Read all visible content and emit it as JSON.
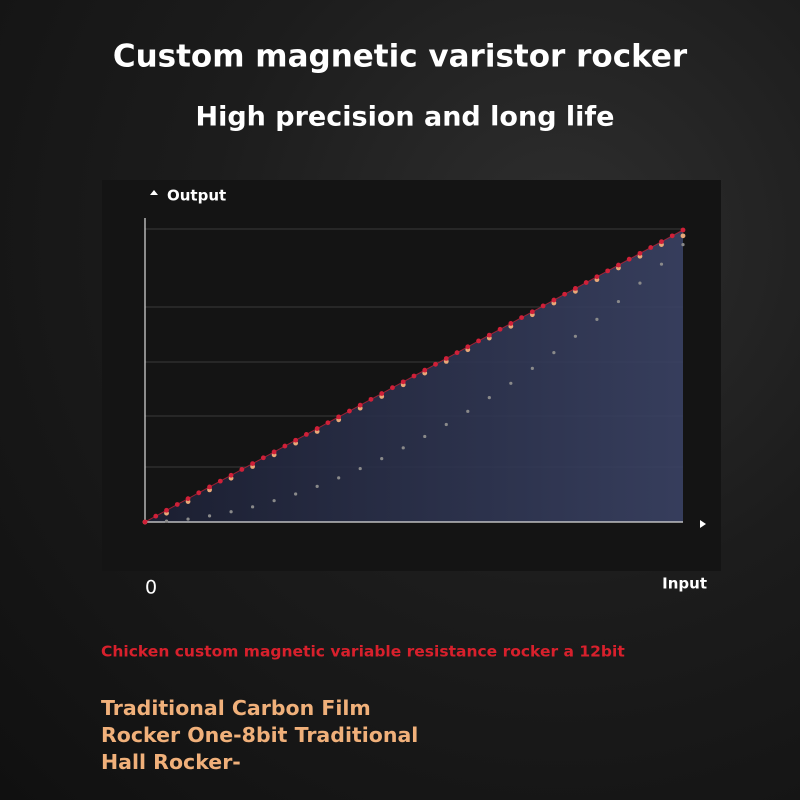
{
  "chart_data": {
    "type": "scatter",
    "title": "Custom magnetic varistor rocker",
    "subtitle": "High precision and long life",
    "y_label": "Output",
    "x_label": "Input",
    "xlim": [
      0,
      100
    ],
    "ylim": [
      0,
      100
    ],
    "xticks": [
      0
    ],
    "series": [
      {
        "color": "#d02038",
        "x": [
          0,
          2,
          4,
          6,
          8,
          10,
          12,
          14,
          16,
          18,
          20,
          22,
          24,
          26,
          28,
          30,
          32,
          34,
          36,
          38,
          40,
          42,
          44,
          46,
          48,
          50,
          52,
          54,
          56,
          58,
          60,
          62,
          64,
          66,
          68,
          70,
          72,
          74,
          76,
          78,
          80,
          82,
          84,
          86,
          88,
          90,
          92,
          94,
          96,
          98,
          100
        ],
        "values": [
          0,
          2,
          4,
          6,
          8,
          10,
          12,
          14,
          16,
          18,
          20,
          22,
          24,
          26,
          28,
          30,
          32,
          34,
          36,
          38,
          40,
          42,
          44,
          46,
          48,
          50,
          52,
          54,
          56,
          58,
          60,
          62,
          64,
          66,
          68,
          70,
          72,
          74,
          76,
          78,
          80,
          82,
          84,
          86,
          88,
          90,
          92,
          94,
          96,
          98,
          100
        ]
      },
      {
        "color": "#e8a878",
        "x": [
          0,
          4,
          8,
          12,
          16,
          20,
          24,
          28,
          32,
          36,
          40,
          44,
          48,
          52,
          56,
          60,
          64,
          68,
          72,
          76,
          80,
          84,
          88,
          92,
          96,
          100
        ],
        "values": [
          0,
          3,
          7,
          11,
          15,
          19,
          23,
          27,
          31,
          35,
          39,
          43,
          47,
          51,
          55,
          59,
          63,
          67,
          71,
          75,
          79,
          83,
          87,
          91,
          95,
          98
        ]
      },
      {
        "color": "#8a8a8a",
        "x": [
          0,
          4,
          8,
          12,
          16,
          20,
          24,
          28,
          32,
          36,
          40,
          44,
          48,
          52,
          56,
          60,
          64,
          68,
          72,
          76,
          80,
          84,
          88,
          92,
          96,
          100
        ],
        "values": [
          0,
          0.3,
          1.0,
          2.1,
          3.5,
          5.2,
          7.3,
          9.6,
          12.2,
          15.1,
          18.3,
          21.7,
          25.4,
          29.3,
          33.4,
          37.9,
          42.6,
          47.5,
          52.6,
          58.0,
          63.6,
          69.4,
          75.5,
          81.8,
          88.3,
          95
        ]
      }
    ],
    "legend": [
      {
        "text": "Chicken custom magnetic variable resistance rocker a 12bit",
        "color": "#d8202c"
      },
      {
        "lines": [
          "Traditional Carbon Film",
          "Rocker One-8bit Traditional",
          "Hall Rocker-"
        ],
        "color": "#f0b07a"
      }
    ]
  }
}
